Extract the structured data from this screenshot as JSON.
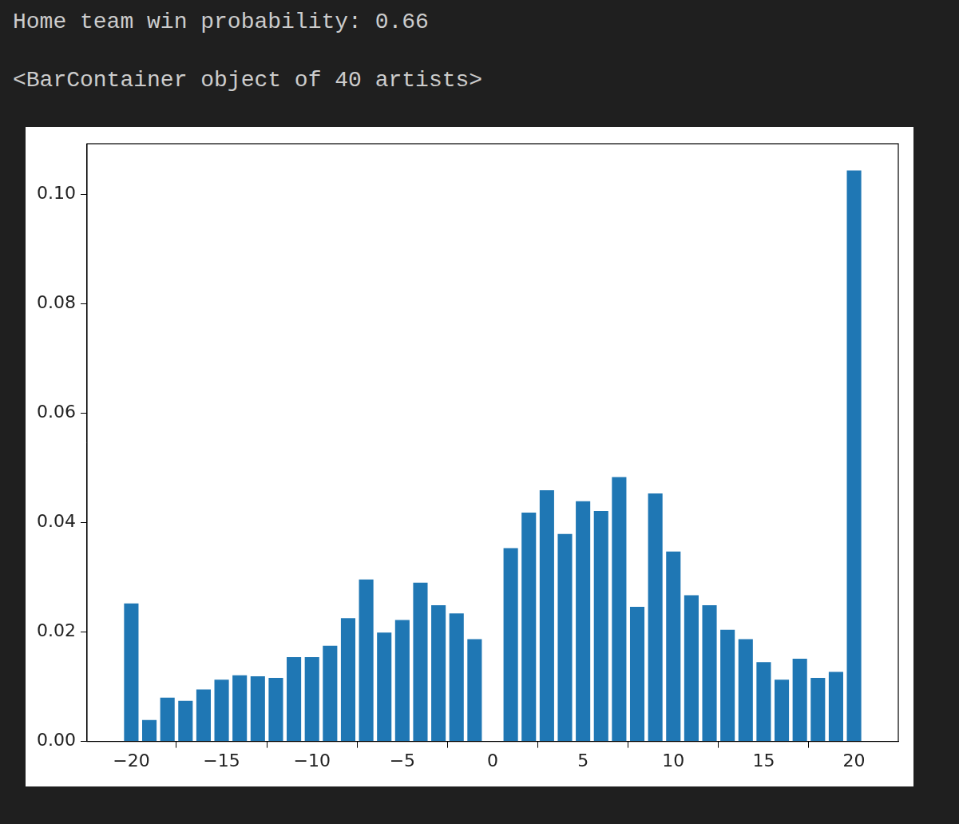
{
  "notebook_output": {
    "lines": [
      "Home team win probability: 0.66",
      "<BarContainer object of 40 artists>"
    ]
  },
  "chart_data": {
    "type": "bar",
    "color": "#1f77b4",
    "grid": false,
    "x": [
      -20,
      -19,
      -18,
      -17,
      -16,
      -15,
      -14,
      -13,
      -12,
      -11,
      -10,
      -9,
      -8,
      -7,
      -6,
      -5,
      -4,
      -3,
      -2,
      -1,
      1,
      2,
      3,
      4,
      5,
      6,
      7,
      8,
      9,
      10,
      11,
      12,
      13,
      14,
      15,
      16,
      17,
      18,
      19,
      20
    ],
    "values": [
      0.0252,
      0.0039,
      0.008,
      0.0074,
      0.0095,
      0.0113,
      0.0121,
      0.0119,
      0.0116,
      0.0154,
      0.0154,
      0.0175,
      0.0225,
      0.0296,
      0.0199,
      0.0222,
      0.029,
      0.0249,
      0.0234,
      0.0187,
      0.0353,
      0.0418,
      0.0459,
      0.0379,
      0.0439,
      0.0421,
      0.0483,
      0.0246,
      0.0453,
      0.0347,
      0.0267,
      0.0249,
      0.0204,
      0.0187,
      0.0145,
      0.0113,
      0.0151,
      0.0116,
      0.0127,
      0.1043
    ],
    "xlim": [
      -22.45,
      22.45
    ],
    "xticks": [
      {
        "value": -20,
        "label": "−20"
      },
      {
        "value": -15,
        "label": "−15"
      },
      {
        "value": -10,
        "label": "−10"
      },
      {
        "value": -5,
        "label": "−5"
      },
      0,
      5,
      10,
      15,
      20
    ],
    "ylim": [
      0,
      0.1092
    ],
    "yticks": [
      {
        "value": 0,
        "label": "0.00"
      },
      {
        "value": 0.02,
        "label": "0.02"
      },
      {
        "value": 0.04,
        "label": "0.04"
      },
      {
        "value": 0.06,
        "label": "0.06"
      },
      {
        "value": 0.08,
        "label": "0.08"
      },
      {
        "value": 0.1,
        "label": "0.10"
      }
    ]
  }
}
